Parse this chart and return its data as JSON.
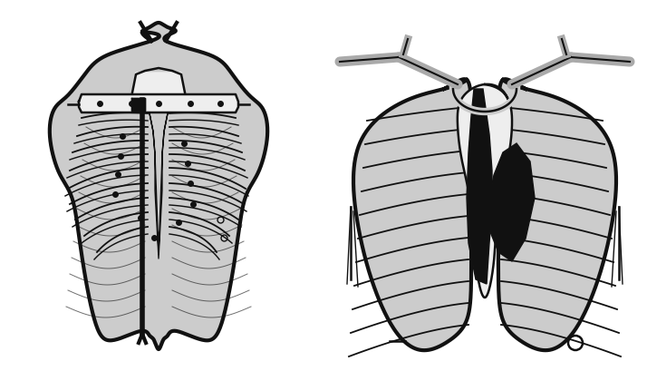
{
  "background_color": "#ffffff",
  "figure_width": 7.14,
  "figure_height": 4.09,
  "dpi": 100,
  "outline_color": "#111111",
  "fill_light": "#cccccc",
  "fill_mid": "#aaaaaa",
  "fill_dark": "#777777",
  "fill_black": "#111111",
  "fill_white": "#eeeeee",
  "lw_thick": 3.0,
  "lw_med": 1.8,
  "lw_thin": 1.0,
  "lw_rib": 1.3
}
